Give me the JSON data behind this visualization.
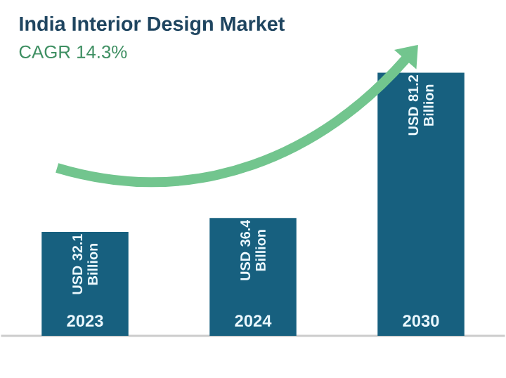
{
  "chart_data": {
    "type": "bar",
    "title": "India Interior Design Market",
    "subtitle": "CAGR 14.3%",
    "categories": [
      "2023",
      "2024",
      "2030"
    ],
    "values": [
      32.1,
      36.4,
      81.2
    ],
    "value_labels": [
      "USD 32.1 Billion",
      "USD 36.4 Billion",
      "USD 81.2 Billion"
    ],
    "color": "#17607f"
  }
}
